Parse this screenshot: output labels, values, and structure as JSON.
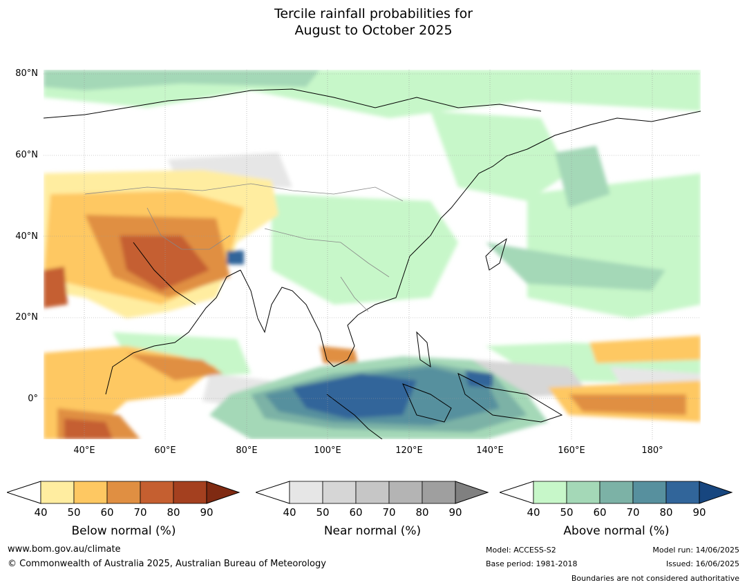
{
  "title": {
    "line1": "Tercile rainfall probabilities for",
    "line2": "August to October 2025"
  },
  "map": {
    "latitude_labels": [
      "80°N",
      "60°N",
      "40°N",
      "20°N",
      "0°"
    ],
    "longitude_labels": [
      "40°E",
      "60°E",
      "80°E",
      "100°E",
      "120°E",
      "140°E",
      "160°E",
      "180°"
    ],
    "extent": {
      "lon_min": 30,
      "lon_max": 192,
      "lat_min": -10,
      "lat_max": 81
    }
  },
  "colorbars": [
    {
      "title": "Below normal (%)",
      "ticks": [
        "40",
        "50",
        "60",
        "70",
        "80",
        "90"
      ],
      "colors": [
        "#ffeda0",
        "#fec862",
        "#e08f42",
        "#c55f30",
        "#a4401f",
        "#7f2a12"
      ]
    },
    {
      "title": "Near normal (%)",
      "ticks": [
        "40",
        "50",
        "60",
        "70",
        "80",
        "90"
      ],
      "colors": [
        "#e6e6e6",
        "#d6d6d6",
        "#c6c6c6",
        "#b4b4b4",
        "#9f9f9f",
        "#808080"
      ]
    },
    {
      "title": "Above normal (%)",
      "ticks": [
        "40",
        "50",
        "60",
        "70",
        "80",
        "90"
      ],
      "colors": [
        "#c7f7c9",
        "#a4d8b7",
        "#7cb2a6",
        "#57909e",
        "#31659a",
        "#17467f"
      ]
    }
  ],
  "footer": {
    "website": "www.bom.gov.au/climate",
    "copyright": "© Commonwealth of Australia 2025, Australian Bureau of Meteorology",
    "model": "Model: ACCESS-S2",
    "base_period": "Base period: 1981-2018",
    "model_run": "Model run: 14/06/2025",
    "issued": "Issued: 16/06/2025",
    "disclaimer": "Boundaries are not considered authoritative"
  }
}
